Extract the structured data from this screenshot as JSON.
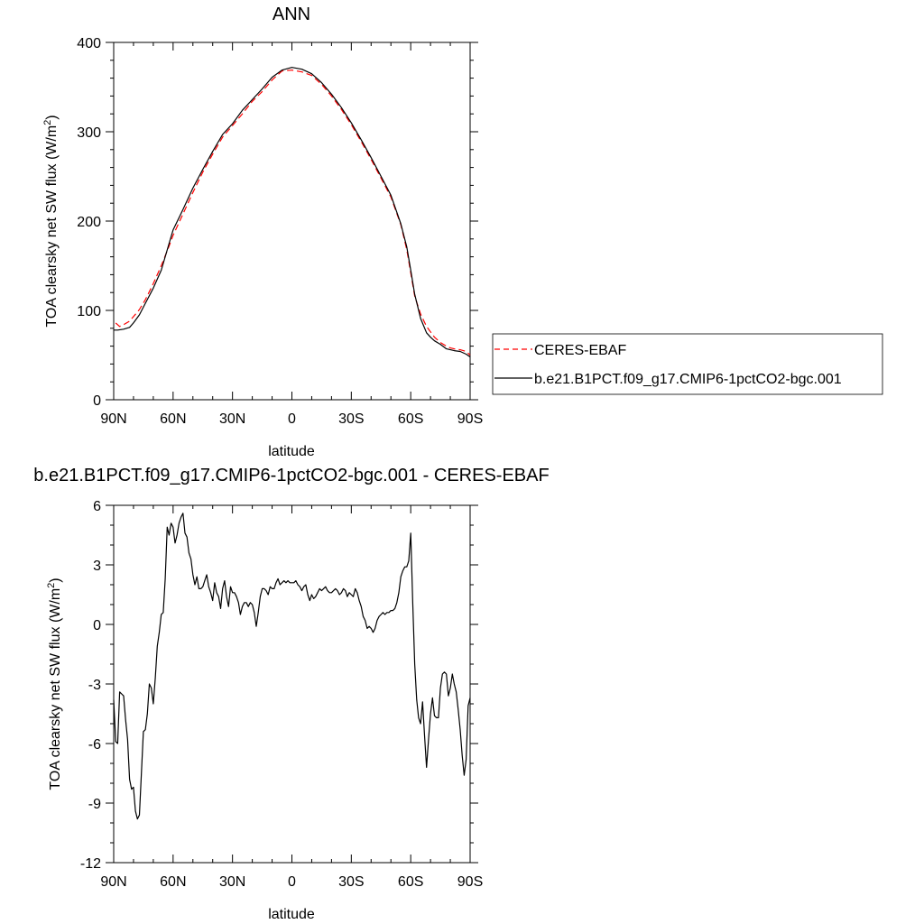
{
  "chart_data": [
    {
      "type": "line",
      "title": "ANN",
      "xlabel": "latitude",
      "ylabel": "TOA clearsky net SW flux (W/m",
      "ylabel_sup": "2",
      "ylabel_tail": ")",
      "xlim": [
        90,
        -90
      ],
      "ylim": [
        0,
        400
      ],
      "xticks": [
        90,
        60,
        30,
        0,
        -30,
        -60,
        -90
      ],
      "xtick_labels": [
        "90N",
        "60N",
        "30N",
        "0",
        "30S",
        "60S",
        "90S"
      ],
      "yticks": [
        0,
        100,
        200,
        300,
        400
      ],
      "ytick_labels": [
        "0",
        "100",
        "200",
        "300",
        "400"
      ],
      "legend_position": "right",
      "series": [
        {
          "name": "CERES-EBAF",
          "color": "#ff0000",
          "dash": "dashed",
          "x": [
            89,
            87,
            85,
            82,
            80,
            77,
            74,
            70,
            66,
            62,
            60,
            55,
            50,
            45,
            40,
            35,
            30,
            25,
            20,
            15,
            10,
            5,
            0,
            -5,
            -10,
            -15,
            -20,
            -25,
            -30,
            -35,
            -40,
            -45,
            -50,
            -55,
            -58,
            -60,
            -62,
            -65,
            -68,
            -70,
            -72,
            -75,
            -78,
            -80,
            -82,
            -85,
            -88,
            -90
          ],
          "y": [
            86,
            82,
            84,
            88,
            93,
            101,
            112,
            130,
            150,
            172,
            184,
            208,
            232,
            255,
            275,
            294,
            307,
            320,
            334,
            345,
            358,
            368,
            369,
            367,
            363,
            353,
            340,
            325,
            308,
            289,
            269,
            248,
            227,
            196,
            168,
            142,
            116,
            96,
            82,
            76,
            70,
            64,
            60,
            58,
            57,
            56,
            54,
            50
          ]
        },
        {
          "name": "b.e21.B1PCT.f09_g17.CMIP6-1pctCO2-bgc.001",
          "color": "#000000",
          "dash": "solid",
          "x": [
            90,
            88,
            85,
            82,
            80,
            77,
            74,
            70,
            66,
            62,
            60,
            55,
            50,
            45,
            40,
            35,
            30,
            25,
            20,
            15,
            10,
            5,
            0,
            -5,
            -10,
            -15,
            -20,
            -25,
            -30,
            -35,
            -40,
            -45,
            -50,
            -55,
            -58,
            -60,
            -62,
            -65,
            -68,
            -70,
            -72,
            -75,
            -78,
            -80,
            -82,
            -85,
            -88,
            -90
          ],
          "y": [
            78,
            78,
            79,
            81,
            86,
            95,
            108,
            125,
            145,
            175,
            190,
            213,
            237,
            258,
            278,
            297,
            309,
            324,
            336,
            348,
            361,
            369,
            372,
            370,
            365,
            355,
            342,
            327,
            310,
            291,
            271,
            250,
            229,
            197,
            171,
            145,
            118,
            91,
            75,
            70,
            66,
            62,
            57,
            56,
            55,
            54,
            51,
            48
          ]
        }
      ]
    },
    {
      "type": "line",
      "title": "b.e21.B1PCT.f09_g17.CMIP6-1pctCO2-bgc.001 - CERES-EBAF",
      "xlabel": "latitude",
      "ylabel": "TOA clearsky net SW flux (W/m",
      "ylabel_sup": "2",
      "ylabel_tail": ")",
      "xlim": [
        90,
        -90
      ],
      "ylim": [
        -12,
        6
      ],
      "xticks": [
        90,
        60,
        30,
        0,
        -30,
        -60,
        -90
      ],
      "xtick_labels": [
        "90N",
        "60N",
        "30N",
        "0",
        "30S",
        "60S",
        "90S"
      ],
      "yticks": [
        -12,
        -9,
        -6,
        -3,
        0,
        3,
        6
      ],
      "ytick_labels": [
        "-12",
        "-9",
        "-6",
        "-3",
        "0",
        "3",
        "6"
      ],
      "series": [
        {
          "color": "#000000",
          "dash": "solid",
          "x": [
            90,
            89,
            88,
            87,
            86,
            85,
            84,
            83,
            82,
            81,
            80,
            79,
            78,
            77,
            76,
            75,
            74,
            73,
            72,
            71,
            70,
            69,
            68,
            67,
            66,
            65,
            64,
            63,
            62,
            61,
            60,
            59,
            58,
            57,
            56,
            55,
            54,
            53,
            52,
            51,
            50,
            49,
            48,
            47,
            46,
            45,
            44,
            43,
            42,
            41,
            40,
            39,
            38,
            37,
            36,
            35,
            34,
            33,
            32,
            31,
            30,
            29,
            28,
            27,
            26,
            25,
            24,
            23,
            22,
            21,
            20,
            19,
            18,
            17,
            16,
            15,
            14,
            13,
            12,
            11,
            10,
            9,
            8,
            7,
            6,
            5,
            4,
            3,
            2,
            1,
            0,
            -1,
            -2,
            -3,
            -4,
            -5,
            -6,
            -7,
            -8,
            -9,
            -10,
            -11,
            -12,
            -13,
            -14,
            -15,
            -16,
            -17,
            -18,
            -19,
            -20,
            -21,
            -22,
            -23,
            -24,
            -25,
            -26,
            -27,
            -28,
            -29,
            -30,
            -31,
            -32,
            -33,
            -34,
            -35,
            -36,
            -37,
            -38,
            -39,
            -40,
            -41,
            -42,
            -43,
            -44,
            -45,
            -46,
            -47,
            -48,
            -49,
            -50,
            -51,
            -52,
            -53,
            -54,
            -55,
            -56,
            -57,
            -58,
            -59,
            -60,
            -61,
            -62,
            -63,
            -64,
            -65,
            -66,
            -67,
            -68,
            -69,
            -70,
            -71,
            -72,
            -73,
            -74,
            -75,
            -76,
            -77,
            -78,
            -79,
            -80,
            -81,
            -82,
            -83,
            -84,
            -85,
            -86,
            -87,
            -88,
            -89,
            -90
          ],
          "y": [
            -3.8,
            -5.9,
            -6.0,
            -3.4,
            -3.5,
            -3.6,
            -4.8,
            -5.8,
            -7.8,
            -8.3,
            -8.2,
            -9.4,
            -9.8,
            -9.6,
            -7.5,
            -5.4,
            -5.3,
            -4.5,
            -3.0,
            -3.2,
            -4.0,
            -2.7,
            -1.1,
            -0.4,
            0.5,
            0.6,
            2.3,
            4.9,
            4.5,
            5.1,
            4.9,
            4.1,
            4.5,
            5.1,
            5.4,
            5.6,
            4.6,
            4.4,
            3.6,
            3.3,
            2.5,
            2.0,
            2.4,
            1.8,
            1.8,
            1.9,
            2.2,
            2.5,
            1.9,
            1.6,
            1.2,
            2.1,
            1.6,
            1.4,
            0.8,
            1.8,
            2.2,
            1.4,
            0.9,
            1.9,
            1.6,
            1.6,
            1.4,
            1.1,
            0.5,
            0.9,
            1.1,
            1.1,
            0.9,
            1.1,
            1.0,
            0.6,
            -0.1,
            0.6,
            1.4,
            1.8,
            1.8,
            1.7,
            1.5,
            1.9,
            1.8,
            1.8,
            2.1,
            2.3,
            2.0,
            2.1,
            2.2,
            2.1,
            2.2,
            2.1,
            2.1,
            2.1,
            2.2,
            2.0,
            1.9,
            1.7,
            1.9,
            2.0,
            1.5,
            1.2,
            1.5,
            1.3,
            1.4,
            1.6,
            1.8,
            1.7,
            1.8,
            1.9,
            1.7,
            1.6,
            1.6,
            1.7,
            1.8,
            1.7,
            1.5,
            1.6,
            1.8,
            1.7,
            1.4,
            1.6,
            1.5,
            1.4,
            1.8,
            1.6,
            1.2,
            0.9,
            0.4,
            0.2,
            -0.2,
            -0.1,
            -0.2,
            -0.4,
            -0.2,
            0.2,
            0.4,
            0.5,
            0.6,
            0.5,
            0.6,
            0.6,
            0.7,
            0.7,
            0.8,
            1.1,
            1.6,
            2.4,
            2.7,
            2.9,
            2.9,
            3.2,
            4.6,
            1.1,
            -2.0,
            -3.8,
            -4.7,
            -5.0,
            -3.9,
            -5.6,
            -7.2,
            -5.8,
            -4.5,
            -3.7,
            -4.6,
            -4.7,
            -4.7,
            -3.2,
            -2.5,
            -2.4,
            -2.5,
            -3.6,
            -3.2,
            -2.5,
            -3.0,
            -3.4,
            -4.3,
            -5.3,
            -6.6,
            -7.6,
            -6.8,
            -4.1,
            -3.7
          ]
        }
      ]
    }
  ]
}
